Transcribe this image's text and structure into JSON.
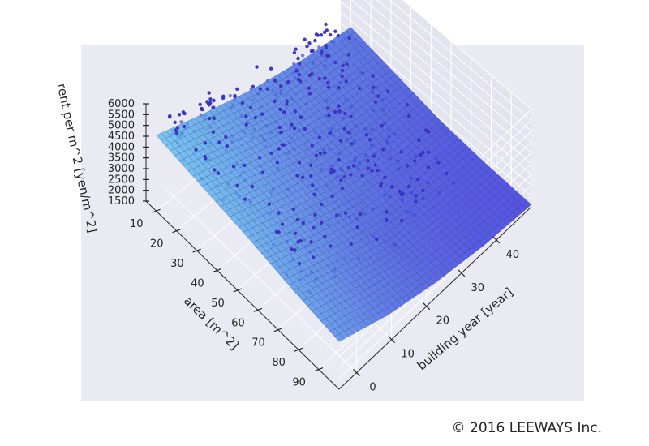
{
  "chart_data": {
    "type": "surface3d",
    "xlabel": "area [m^2]",
    "ylabel": "building year [year]",
    "zlabel": "rent per m^2 [yen/m^2]",
    "x_ticks": [
      10,
      20,
      30,
      40,
      50,
      60,
      70,
      80,
      90
    ],
    "y_ticks": [
      0,
      10,
      20,
      30,
      40
    ],
    "z_ticks": [
      1500,
      2000,
      2500,
      3000,
      3500,
      4000,
      4500,
      5000,
      5500,
      6000
    ],
    "xlim": [
      5,
      100
    ],
    "ylim": [
      -5,
      50
    ],
    "zlim": [
      1500,
      6000
    ],
    "grid": true,
    "surface": {
      "grid_x": [
        10,
        32.5,
        55,
        77.5,
        100
      ],
      "grid_y": [
        -5,
        8.75,
        22.5,
        36.25,
        50
      ],
      "z": [
        [
          5000,
          4200,
          3500,
          3000,
          2700
        ],
        [
          4700,
          3900,
          3100,
          2600,
          2300
        ],
        [
          4400,
          3500,
          2700,
          2200,
          1900
        ],
        [
          4000,
          3100,
          2300,
          1900,
          1700
        ],
        [
          3700,
          2800,
          2200,
          1800,
          1600
        ]
      ],
      "color_low": "#3333dd",
      "color_high": "#5fc0f2"
    },
    "scatter_color": "#3a2fbf",
    "copyright": "© 2016 LEEWAYS Inc."
  }
}
